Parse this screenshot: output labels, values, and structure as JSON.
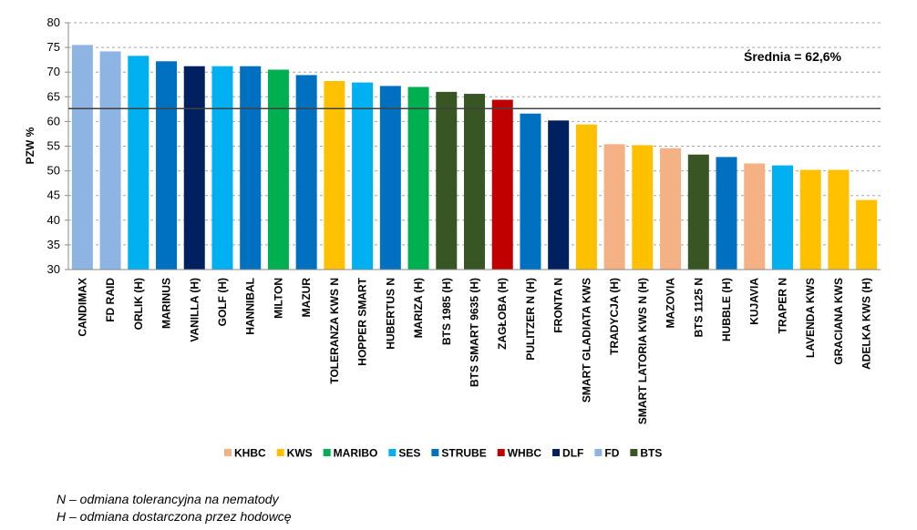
{
  "chart_data": {
    "type": "bar",
    "ylabel": "PZW %",
    "ylim": [
      30,
      80
    ],
    "yticks": [
      30,
      35,
      40,
      45,
      50,
      55,
      60,
      65,
      70,
      75,
      80
    ],
    "grid": "horizontal dashed",
    "legend_placement": "bottom",
    "average": {
      "value": 62.6,
      "label": "Średnia = 62,6%"
    },
    "breeders": [
      {
        "name": "KHBC",
        "color": "#F4B183"
      },
      {
        "name": "KWS",
        "color": "#FFC000"
      },
      {
        "name": "MARIBO",
        "color": "#00B050"
      },
      {
        "name": "SES",
        "color": "#00B0F0"
      },
      {
        "name": "STRUBE",
        "color": "#0070C0"
      },
      {
        "name": "WHBC",
        "color": "#C00000"
      },
      {
        "name": "DLF",
        "color": "#002060"
      },
      {
        "name": "FD",
        "color": "#8EB4E3"
      },
      {
        "name": "BTS",
        "color": "#375623"
      }
    ],
    "categories": [
      "CANDIMAX",
      "FD RAID",
      "ORLIK (H)",
      "MARINUS",
      "VANILLA (H)",
      "GOLF (H)",
      "HANNIBAL",
      "MILTON",
      "MAZUR",
      "TOLERANZA KWS N",
      "HOPPER SMART",
      "HUBERTUS N",
      "MARIZA (H)",
      "BTS 1985 (H)",
      "BTS SMART 9635 (H)",
      "ZAGŁOBA (H)",
      "PULITZER N (H)",
      "FRONTA N",
      "SMART GLADIATA KWS",
      "TRADYCJA (H)",
      "SMART LATORIA KWS N (H)",
      "MAZOVIA",
      "BTS 1125 N",
      "HUBBLE (H)",
      "KUJAVIA",
      "TRAPER N",
      "LAVENDA KWS",
      "GRACIANA KWS",
      "ADELKA KWS (H)"
    ],
    "values": [
      75.5,
      74.2,
      73.3,
      72.2,
      71.2,
      71.2,
      71.2,
      70.5,
      69.4,
      68.2,
      67.9,
      67.2,
      67.0,
      66.0,
      65.6,
      64.4,
      61.6,
      60.2,
      59.4,
      55.4,
      55.2,
      54.6,
      53.3,
      52.8,
      51.5,
      51.1,
      50.2,
      50.2,
      44.1
    ],
    "breeder_of": [
      "FD",
      "FD",
      "SES",
      "STRUBE",
      "DLF",
      "SES",
      "STRUBE",
      "MARIBO",
      "STRUBE",
      "KWS",
      "SES",
      "STRUBE",
      "MARIBO",
      "BTS",
      "BTS",
      "WHBC",
      "STRUBE",
      "DLF",
      "KWS",
      "KHBC",
      "KWS",
      "KHBC",
      "BTS",
      "STRUBE",
      "KHBC",
      "SES",
      "KWS",
      "KWS",
      "KWS"
    ]
  },
  "footnotes": {
    "line1": "N – odmiana tolerancyjna na nematody",
    "line2": "H – odmiana dostarczona przez hodowcę"
  }
}
